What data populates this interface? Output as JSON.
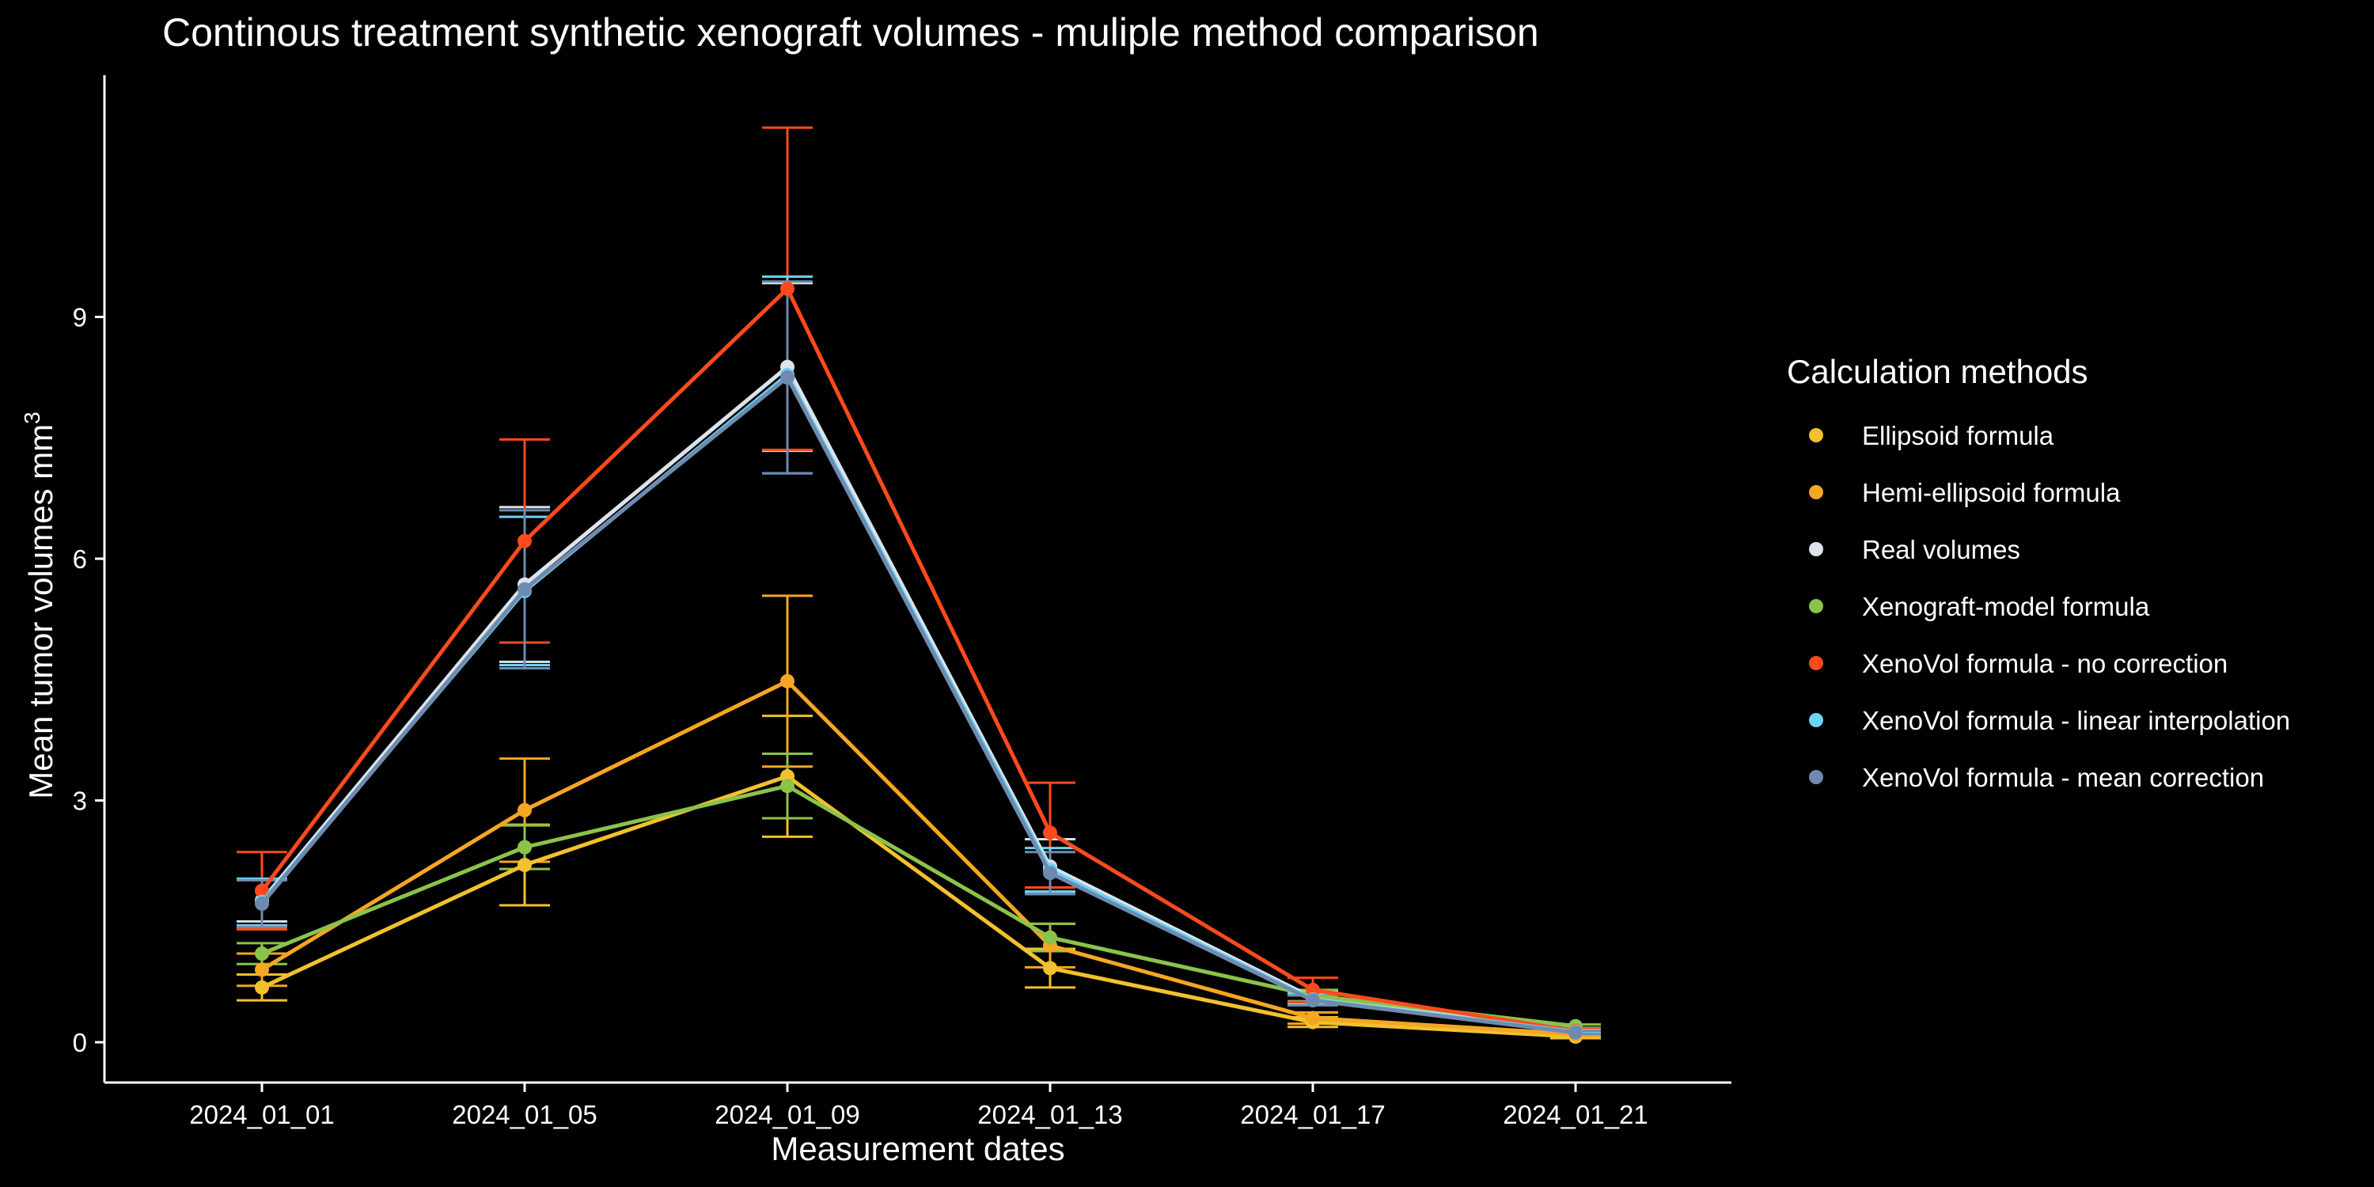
{
  "chart_data": {
    "type": "line",
    "title": "Continous treatment synthetic xenograft volumes - muliple method comparison",
    "xlabel": "Measurement dates",
    "ylabel": "Mean tumor volumes mm",
    "ylabel_superscript": "3",
    "categories": [
      "2024_01_01",
      "2024_01_05",
      "2024_01_09",
      "2024_01_13",
      "2024_01_17",
      "2024_01_21"
    ],
    "ylim": [
      -0.5,
      12
    ],
    "yticks": [
      0,
      3,
      6,
      9
    ],
    "ytick_labels": [
      "0",
      "3",
      "6",
      "9"
    ],
    "grid": false,
    "legend": {
      "title": "Calculation methods",
      "position": "right"
    },
    "series": [
      {
        "name": "Ellipsoid formula",
        "color": "#F2C12E",
        "values": [
          0.68,
          2.2,
          3.3,
          0.92,
          0.25,
          0.07
        ],
        "lower": [
          0.52,
          1.7,
          2.55,
          0.68,
          0.19,
          0.05
        ],
        "upper": [
          0.84,
          2.7,
          4.05,
          1.16,
          0.31,
          0.09
        ]
      },
      {
        "name": "Hemi-ellipsoid formula",
        "color": "#F5A623",
        "values": [
          0.9,
          2.88,
          4.48,
          1.2,
          0.3,
          0.1
        ],
        "lower": [
          0.7,
          2.24,
          3.42,
          0.93,
          0.23,
          0.07
        ],
        "upper": [
          1.1,
          3.52,
          5.54,
          1.47,
          0.37,
          0.13
        ]
      },
      {
        "name": "Real volumes",
        "color": "#DCE3EA",
        "values": [
          1.76,
          5.68,
          8.38,
          2.18,
          0.55,
          0.14
        ],
        "lower": [
          1.5,
          4.72,
          7.34,
          1.84,
          0.47,
          0.12
        ],
        "upper": [
          2.02,
          6.64,
          9.42,
          2.52,
          0.63,
          0.16
        ]
      },
      {
        "name": "Xenograft-model formula",
        "color": "#8BC34A",
        "values": [
          1.1,
          2.42,
          3.18,
          1.3,
          0.58,
          0.2
        ],
        "lower": [
          0.97,
          2.15,
          2.78,
          1.13,
          0.51,
          0.18
        ],
        "upper": [
          1.23,
          2.69,
          3.58,
          1.47,
          0.65,
          0.22
        ]
      },
      {
        "name": "XenoVol formula - no correction",
        "color": "#FF4A1C",
        "values": [
          1.88,
          6.22,
          9.35,
          2.6,
          0.65,
          0.14
        ],
        "lower": [
          1.4,
          4.96,
          7.35,
          1.92,
          0.5,
          0.11
        ],
        "upper": [
          2.36,
          7.48,
          11.35,
          3.22,
          0.8,
          0.17
        ]
      },
      {
        "name": "XenoVol formula - linear interpolation",
        "color": "#6CD3F5",
        "values": [
          1.74,
          5.6,
          8.28,
          2.14,
          0.53,
          0.13
        ],
        "lower": [
          1.45,
          4.68,
          7.06,
          1.87,
          0.46,
          0.11
        ],
        "upper": [
          2.03,
          6.52,
          9.5,
          2.41,
          0.6,
          0.15
        ]
      },
      {
        "name": "XenoVol formula - mean correction",
        "color": "#6E8BAF",
        "values": [
          1.72,
          5.62,
          8.25,
          2.1,
          0.52,
          0.12
        ],
        "lower": [
          1.43,
          4.64,
          7.06,
          1.84,
          0.46,
          0.1
        ],
        "upper": [
          2.01,
          6.6,
          9.44,
          2.36,
          0.58,
          0.14
        ]
      }
    ]
  }
}
